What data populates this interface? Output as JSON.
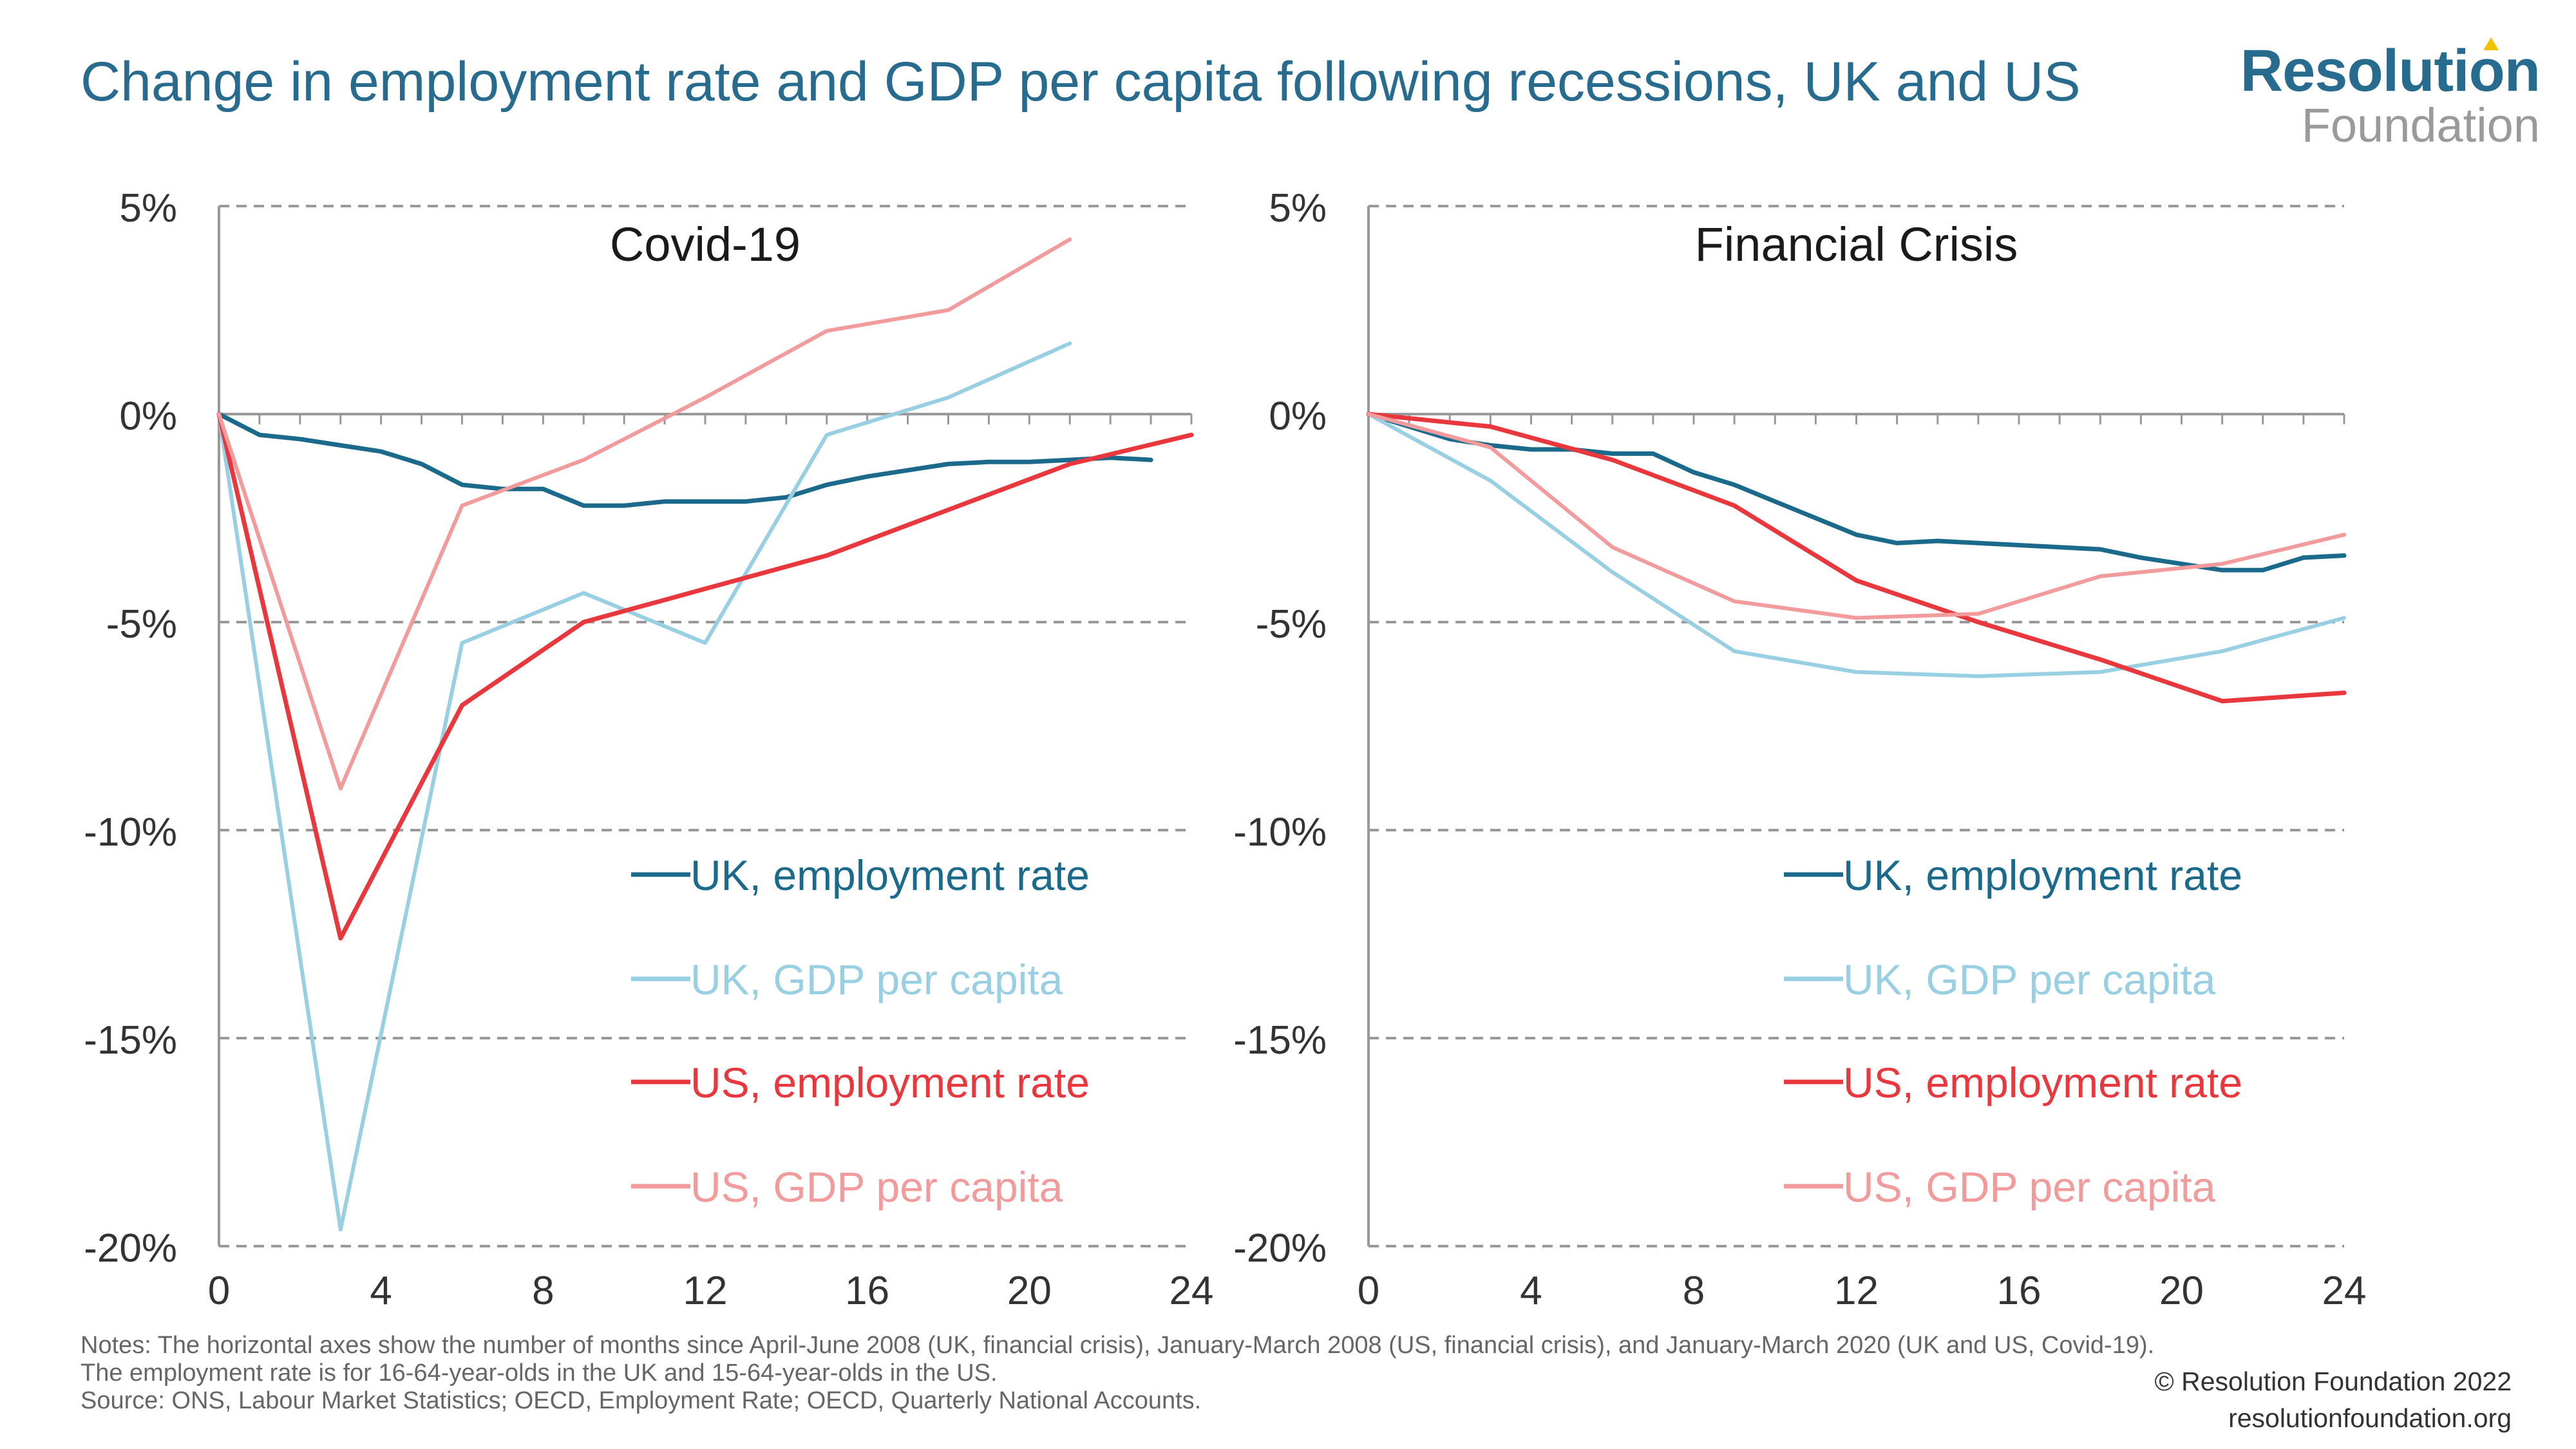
{
  "title": "Change in employment rate and GDP per capita following recessions, UK and US",
  "logo": {
    "line1": "Resolution",
    "line2": "Foundation"
  },
  "notes": "Notes: The horizontal axes show the number of months since April-June 2008 (UK, financial crisis), January-March 2008 (US, financial crisis), and January-March 2020 (UK and US, Covid-19). The employment rate is for 16-64-year-olds in the UK and 15-64-year-olds in the US.",
  "source": "Source: ONS, Labour Market Statistics; OECD, Employment Rate; OECD, Quarterly National Accounts.",
  "copyright": "© Resolution Foundation 2022",
  "website": "resolutionfoundation.org",
  "colors": {
    "uk_employment": "#1b6a8c",
    "uk_gdp": "#98cfe3",
    "us_employment": "#e8383d",
    "us_gdp": "#f29b9c",
    "grid": "#999999",
    "axis": "#999999",
    "tick_label": "#333333",
    "title": "#276b8e"
  },
  "chart_data": [
    {
      "type": "line",
      "title": "Covid-19",
      "xlim": [
        0,
        24
      ],
      "ylim": [
        -20,
        5
      ],
      "x_ticks": [
        0,
        4,
        8,
        12,
        16,
        20,
        24
      ],
      "y_ticks": [
        5,
        0,
        -5,
        -10,
        -15,
        -20
      ],
      "y_tick_labels": [
        "5%",
        "0%",
        "-5%",
        "-10%",
        "-15%",
        "-20%"
      ],
      "grid": "horizontal dashed",
      "legend_position": "bottom-right",
      "series": [
        {
          "name": "UK, employment rate",
          "color_key": "uk_employment",
          "x": [
            0,
            1,
            2,
            3,
            4,
            5,
            6,
            7,
            8,
            9,
            10,
            11,
            12,
            13,
            14,
            15,
            16,
            17,
            18,
            19,
            20,
            21,
            22,
            23
          ],
          "y": [
            0,
            -0.5,
            -0.6,
            -0.75,
            -0.9,
            -1.2,
            -1.7,
            -1.8,
            -1.8,
            -2.2,
            -2.2,
            -2.1,
            -2.1,
            -2.1,
            -2.0,
            -1.7,
            -1.5,
            -1.35,
            -1.2,
            -1.15,
            -1.15,
            -1.1,
            -1.05,
            -1.1
          ]
        },
        {
          "name": "UK, GDP per capita",
          "color_key": "uk_gdp",
          "x": [
            0,
            3,
            6,
            9,
            12,
            15,
            18,
            21
          ],
          "y": [
            0,
            -19.6,
            -5.5,
            -4.3,
            -5.5,
            -0.5,
            0.4,
            1.7
          ]
        },
        {
          "name": "US, employment rate",
          "color_key": "us_employment",
          "x": [
            0,
            3,
            6,
            9,
            12,
            15,
            18,
            21,
            24
          ],
          "y": [
            0,
            -12.6,
            -7.0,
            -5.0,
            -4.2,
            -3.4,
            -2.3,
            -1.2,
            -0.5
          ]
        },
        {
          "name": "US, GDP per capita",
          "color_key": "us_gdp",
          "x": [
            0,
            3,
            6,
            9,
            12,
            15,
            18,
            21
          ],
          "y": [
            0,
            -9.0,
            -2.2,
            -1.1,
            0.4,
            2.0,
            2.5,
            4.2
          ]
        }
      ]
    },
    {
      "type": "line",
      "title": "Financial Crisis",
      "xlim": [
        0,
        24
      ],
      "ylim": [
        -20,
        5
      ],
      "x_ticks": [
        0,
        4,
        8,
        12,
        16,
        20,
        24
      ],
      "y_ticks": [
        5,
        0,
        -5,
        -10,
        -15,
        -20
      ],
      "y_tick_labels": [
        "5%",
        "0%",
        "-5%",
        "-10%",
        "-15%",
        "-20%"
      ],
      "grid": "horizontal dashed",
      "legend_position": "bottom-right",
      "series": [
        {
          "name": "UK, employment rate",
          "color_key": "uk_employment",
          "x": [
            0,
            1,
            2,
            3,
            4,
            5,
            6,
            7,
            8,
            9,
            10,
            11,
            12,
            13,
            14,
            15,
            16,
            17,
            18,
            19,
            20,
            21,
            22,
            23,
            24
          ],
          "y": [
            0,
            -0.3,
            -0.6,
            -0.75,
            -0.85,
            -0.85,
            -0.95,
            -0.95,
            -1.4,
            -1.7,
            -2.1,
            -2.5,
            -2.9,
            -3.1,
            -3.05,
            -3.1,
            -3.15,
            -3.2,
            -3.25,
            -3.45,
            -3.6,
            -3.75,
            -3.75,
            -3.45,
            -3.4
          ]
        },
        {
          "name": "UK, GDP per capita",
          "color_key": "uk_gdp",
          "x": [
            0,
            3,
            6,
            9,
            12,
            15,
            18,
            21,
            24
          ],
          "y": [
            0,
            -1.6,
            -3.8,
            -5.7,
            -6.2,
            -6.3,
            -6.2,
            -5.7,
            -4.9
          ]
        },
        {
          "name": "US, employment rate",
          "color_key": "us_employment",
          "x": [
            0,
            3,
            6,
            9,
            12,
            15,
            18,
            21,
            24
          ],
          "y": [
            0,
            -0.3,
            -1.1,
            -2.2,
            -4.0,
            -5.0,
            -5.9,
            -6.9,
            -6.7
          ]
        },
        {
          "name": "US, GDP per capita",
          "color_key": "us_gdp",
          "x": [
            0,
            3,
            6,
            9,
            12,
            15,
            18,
            21,
            24
          ],
          "y": [
            0,
            -0.8,
            -3.2,
            -4.5,
            -4.9,
            -4.8,
            -3.9,
            -3.6,
            -2.9
          ]
        }
      ]
    }
  ]
}
